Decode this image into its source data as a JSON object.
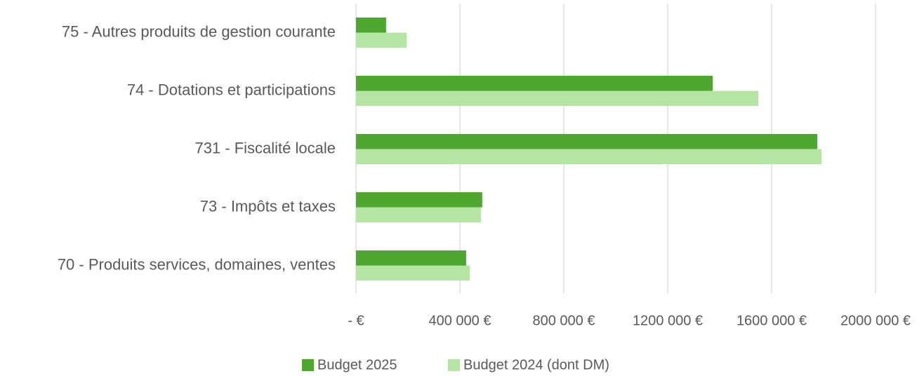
{
  "chart_data": {
    "type": "hbar",
    "categories": [
      "75 - Autres produits de gestion courante",
      "74 - Dotations et participations",
      "731 - Fiscalité locale",
      "73 - Impôts et taxes",
      "70 - Produits services, domaines, ventes"
    ],
    "series": [
      {
        "name": "Budget 2025",
        "color": "#4ea72e",
        "values": [
          116000,
          1373000,
          1776000,
          486000,
          424000
        ]
      },
      {
        "name": "Budget 2024 (dont DM)",
        "color": "#b4e5a2",
        "values": [
          195000,
          1549000,
          1792000,
          481000,
          438000
        ]
      }
    ],
    "xlim": [
      0,
      2000000
    ],
    "xticks": [
      {
        "value": 0,
        "label": "-  €"
      },
      {
        "value": 400000,
        "label": "400 000 €"
      },
      {
        "value": 800000,
        "label": "800 000 €"
      },
      {
        "value": 1200000,
        "label": "1200 000 €"
      },
      {
        "value": 1600000,
        "label": "1600 000 €"
      },
      {
        "value": 2000000,
        "label": "2000 000 €"
      }
    ],
    "grid": true,
    "legend": "bottom"
  }
}
